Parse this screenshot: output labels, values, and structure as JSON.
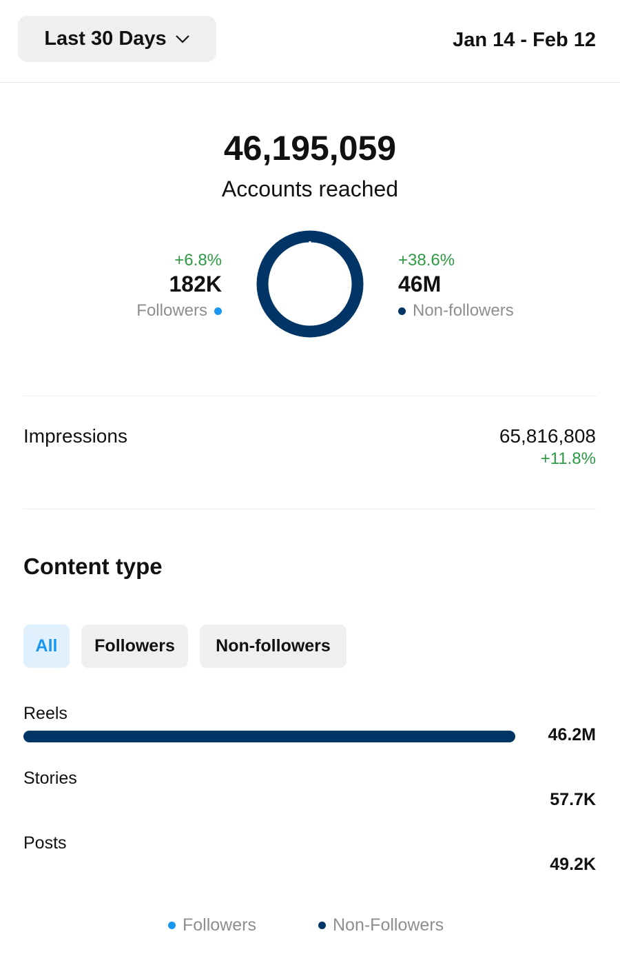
{
  "header": {
    "period_label": "Last 30 Days",
    "date_range": "Jan 14 - Feb 12"
  },
  "reach": {
    "total": "46,195,059",
    "label": "Accounts reached",
    "followers": {
      "change": "+6.8%",
      "value": "182K",
      "label": "Followers",
      "fraction": 0.004
    },
    "non_followers": {
      "change": "+38.6%",
      "value": "46M",
      "label": "Non-followers",
      "fraction": 0.996
    }
  },
  "impressions": {
    "label": "Impressions",
    "value": "65,816,808",
    "change": "+11.8%"
  },
  "content_type": {
    "title": "Content type",
    "filters": [
      "All",
      "Followers",
      "Non-followers"
    ],
    "active_filter": "All",
    "rows": [
      {
        "label": "Reels",
        "value": "46.2M",
        "fraction": 1.0
      },
      {
        "label": "Stories",
        "value": "57.7K",
        "fraction": 0.00125
      },
      {
        "label": "Posts",
        "value": "49.2K",
        "fraction": 0.00106
      }
    ]
  },
  "legend": {
    "followers": "Followers",
    "non_followers": "Non-Followers"
  },
  "colors": {
    "followers": "#1a96f0",
    "non_followers": "#003566",
    "positive": "#2e9a44"
  }
}
